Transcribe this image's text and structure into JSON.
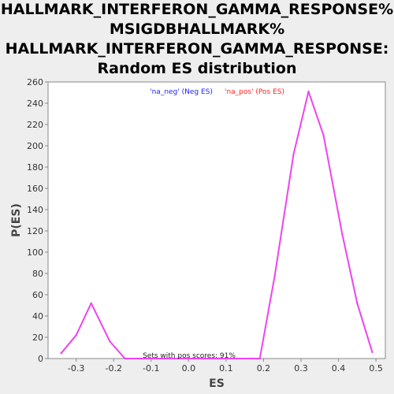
{
  "chart_data": {
    "type": "line",
    "title_lines": [
      "HALLMARK_INTERFERON_GAMMA_RESPONSE%",
      "MSIGDBHALLMARK%",
      "HALLMARK_INTERFERON_GAMMA_RESPONSE:",
      "Random ES distribution"
    ],
    "xlabel": "ES",
    "ylabel": "P(ES)",
    "xlim": [
      -0.375,
      0.525
    ],
    "ylim": [
      0,
      260
    ],
    "xticks": [
      -0.3,
      -0.2,
      -0.1,
      0.0,
      0.1,
      0.2,
      0.3,
      0.4,
      0.5
    ],
    "xtick_labels": [
      "-0.3",
      "-0.2",
      "-0.1",
      "0.0",
      "0.1",
      "0.2",
      "0.3",
      "0.4",
      "0.5"
    ],
    "yticks": [
      0,
      20,
      40,
      60,
      80,
      100,
      120,
      140,
      160,
      180,
      200,
      220,
      240,
      260
    ],
    "ytick_labels": [
      "0",
      "20",
      "40",
      "60",
      "80",
      "100",
      "120",
      "140",
      "160",
      "180",
      "200",
      "220",
      "240",
      "260"
    ],
    "grid": false,
    "legend": {
      "position": "top-center",
      "entries": [
        {
          "label": "'na_neg' (Neg ES)",
          "color": "#2222ff"
        },
        {
          "label": "'na_pos' (Pos ES)",
          "color": "#ff2222"
        }
      ]
    },
    "annotation": "Sets with pos scores: 91%",
    "series": [
      {
        "color": "#ee44ee",
        "x": [
          -0.34,
          -0.3,
          -0.26,
          -0.21,
          -0.17,
          -0.13,
          -0.09,
          -0.04,
          0.0,
          0.04,
          0.08,
          0.13,
          0.17,
          0.19,
          0.23,
          0.28,
          0.32,
          0.36,
          0.41,
          0.45,
          0.49
        ],
        "y": [
          5,
          22,
          52,
          16,
          0,
          0,
          0,
          0,
          0,
          0,
          0,
          0,
          0,
          0,
          78,
          192,
          251,
          210,
          117,
          52,
          6
        ]
      }
    ]
  }
}
